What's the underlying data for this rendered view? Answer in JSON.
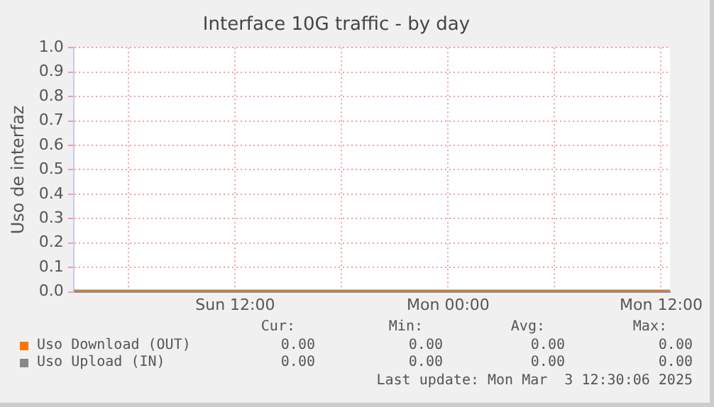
{
  "chart_data": {
    "type": "line",
    "title": "Interface 10G traffic - by day",
    "ylabel": "Uso de interfaz",
    "xlim": [
      "2025-03-02T02:54",
      "2025-03-03T12:30"
    ],
    "xticks": [
      {
        "value": "2025-03-02T06:00",
        "label": null
      },
      {
        "value": "2025-03-02T12:00",
        "label": "Sun 12:00"
      },
      {
        "value": "2025-03-02T18:00",
        "label": null
      },
      {
        "value": "2025-03-03T00:00",
        "label": "Mon 00:00"
      },
      {
        "value": "2025-03-03T06:00",
        "label": null
      },
      {
        "value": "2025-03-03T12:00",
        "label": "Mon 12:00"
      }
    ],
    "ylim": [
      0,
      1
    ],
    "yticks": [
      {
        "value": 0,
        "label": "0.0"
      },
      0.1,
      0.2,
      0.3,
      0.4,
      0.5,
      0.6,
      0.7,
      0.8,
      0.9,
      {
        "value": 1,
        "label": "1.0"
      }
    ],
    "x": [
      "2025-03-02T02:54",
      "2025-03-03T12:30"
    ],
    "series": [
      {
        "name": "Uso Download (OUT)",
        "color": "#f57900",
        "values": [
          0,
          0
        ]
      },
      {
        "name": "Uso Upload (IN)",
        "color": "#888888",
        "values": [
          0,
          0
        ]
      }
    ],
    "annotations": [
      "Cur:",
      "Min:",
      "Avg:",
      "Max:",
      "0.00",
      "0.00",
      "0.00",
      "0.00",
      "0.00",
      "0.00",
      "0.00",
      "0.00",
      "Last update: Mon Mar  3 12:30:06 2025"
    ],
    "grid": true,
    "legend": "bottom left",
    "marker": "none",
    "line_style": "solid"
  }
}
